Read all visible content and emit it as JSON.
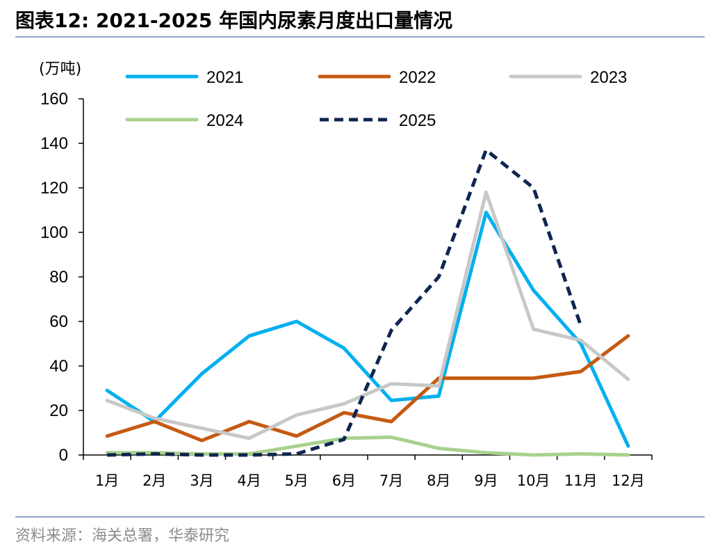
{
  "header": {
    "title": "图表12:  2021-2025 年国内尿素月度出口量情况"
  },
  "footer": {
    "source": "资料来源：海关总署，华泰研究"
  },
  "chart_data": {
    "type": "line",
    "title": "2021-2025 年国内尿素月度出口量情况",
    "ylabel": "(万吨)",
    "xlabel": "",
    "ylim": [
      0,
      160
    ],
    "yticks": [
      0,
      20,
      40,
      60,
      80,
      100,
      120,
      140,
      160
    ],
    "categories": [
      "1月",
      "2月",
      "3月",
      "4月",
      "5月",
      "6月",
      "7月",
      "8月",
      "9月",
      "10月",
      "11月",
      "12月"
    ],
    "legend_position": "top",
    "series": [
      {
        "name": "2021",
        "color": "#00B0F0",
        "dash": "solid",
        "values": [
          29,
          15,
          36.5,
          53.5,
          60,
          48,
          24.5,
          26.5,
          109,
          74,
          50,
          4
        ]
      },
      {
        "name": "2022",
        "color": "#C55A11",
        "dash": "solid",
        "values": [
          8.5,
          15,
          6.5,
          15,
          8.5,
          19,
          15,
          34.5,
          34.5,
          34.5,
          37.5,
          53.5
        ]
      },
      {
        "name": "2023",
        "color": "#C8C8C8",
        "dash": "solid",
        "values": [
          24.5,
          16.5,
          12,
          7.5,
          18,
          23,
          32,
          31,
          118,
          56.5,
          51.5,
          34
        ]
      },
      {
        "name": "2024",
        "color": "#A9D18E",
        "dash": "solid",
        "values": [
          1,
          1,
          0.5,
          0.5,
          4,
          7.5,
          8,
          3,
          1,
          0,
          0.5,
          0
        ]
      },
      {
        "name": "2025",
        "color": "#0E2650",
        "dash": "dashed",
        "values": [
          0,
          0.5,
          0,
          0,
          0.5,
          7,
          56,
          80,
          137,
          120,
          58,
          null
        ]
      }
    ]
  }
}
